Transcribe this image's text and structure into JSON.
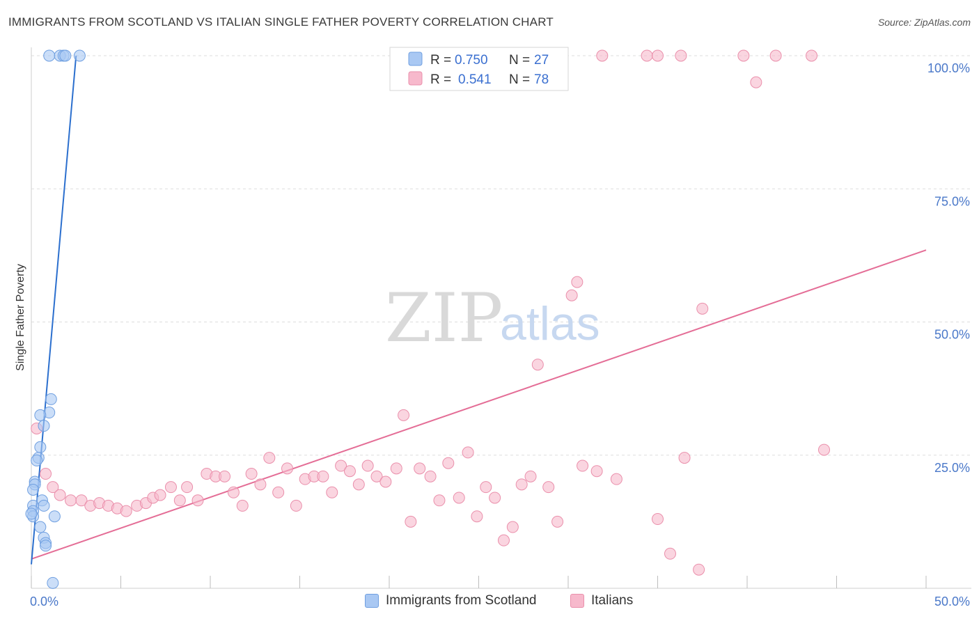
{
  "title": "IMMIGRANTS FROM SCOTLAND VS ITALIAN SINGLE FATHER POVERTY CORRELATION CHART",
  "source": "Source: ZipAtlas.com",
  "watermark": {
    "zip": "ZIP",
    "atlas": "atlas"
  },
  "colors": {
    "scotland_fill": "#a9c8f3",
    "scotland_stroke": "#6f9fe0",
    "scotland_line": "#2b6fce",
    "italians_fill": "#f7b9cc",
    "italians_stroke": "#ea8fab",
    "italians_line": "#e46d96",
    "grid": "#dddddd",
    "axis_text": "#4a78c9"
  },
  "chart_data": {
    "type": "scatter",
    "xlabel": "",
    "ylabel": "Single Father Poverty",
    "xlim": [
      0,
      50
    ],
    "ylim": [
      0,
      100
    ],
    "x_tick_labels": [
      "0.0%",
      "50.0%"
    ],
    "y_ticks": [
      25,
      50,
      75,
      100
    ],
    "y_tick_labels": [
      "25.0%",
      "50.0%",
      "75.0%",
      "100.0%"
    ],
    "legend_position": "top-center",
    "legend": [
      {
        "name": "Immigrants from Scotland",
        "r_label": "R =",
        "r": "0.750",
        "n_label": "N =",
        "n": "27"
      },
      {
        "name": "Italians",
        "r_label": "R =",
        "r": "0.541",
        "n_label": "N =",
        "n": "78"
      }
    ],
    "series": [
      {
        "name": "Immigrants from Scotland",
        "trend": {
          "x": [
            0.0,
            2.5
          ],
          "y": [
            4.5,
            100.0
          ]
        },
        "points": [
          {
            "x": 1.0,
            "y": 100.0
          },
          {
            "x": 1.6,
            "y": 100.0
          },
          {
            "x": 1.8,
            "y": 100.0
          },
          {
            "x": 1.9,
            "y": 100.0
          },
          {
            "x": 2.7,
            "y": 100.0
          },
          {
            "x": 1.1,
            "y": 35.5
          },
          {
            "x": 1.0,
            "y": 33.0
          },
          {
            "x": 0.5,
            "y": 32.5
          },
          {
            "x": 0.7,
            "y": 30.5
          },
          {
            "x": 0.5,
            "y": 26.5
          },
          {
            "x": 0.4,
            "y": 24.5
          },
          {
            "x": 0.3,
            "y": 24.0
          },
          {
            "x": 0.2,
            "y": 20.0
          },
          {
            "x": 0.2,
            "y": 19.5
          },
          {
            "x": 0.1,
            "y": 18.5
          },
          {
            "x": 0.6,
            "y": 16.5
          },
          {
            "x": 0.7,
            "y": 15.5
          },
          {
            "x": 0.1,
            "y": 15.5
          },
          {
            "x": 0.1,
            "y": 14.5
          },
          {
            "x": 1.3,
            "y": 13.5
          },
          {
            "x": 0.1,
            "y": 13.5
          },
          {
            "x": 0.5,
            "y": 11.5
          },
          {
            "x": 0.7,
            "y": 9.5
          },
          {
            "x": 0.8,
            "y": 8.5
          },
          {
            "x": 0.8,
            "y": 8.0
          },
          {
            "x": 1.2,
            "y": 1.0
          },
          {
            "x": 0.0,
            "y": 14.0
          }
        ]
      },
      {
        "name": "Italians",
        "trend": {
          "x": [
            0.0,
            50.0
          ],
          "y": [
            5.5,
            63.5
          ]
        },
        "points": [
          {
            "x": 0.3,
            "y": 30.0
          },
          {
            "x": 0.8,
            "y": 21.5
          },
          {
            "x": 1.2,
            "y": 19.0
          },
          {
            "x": 1.6,
            "y": 17.5
          },
          {
            "x": 2.2,
            "y": 16.5
          },
          {
            "x": 2.8,
            "y": 16.5
          },
          {
            "x": 3.3,
            "y": 15.5
          },
          {
            "x": 3.8,
            "y": 16.0
          },
          {
            "x": 4.3,
            "y": 15.5
          },
          {
            "x": 4.8,
            "y": 15.0
          },
          {
            "x": 5.3,
            "y": 14.5
          },
          {
            "x": 5.9,
            "y": 15.5
          },
          {
            "x": 6.4,
            "y": 16.0
          },
          {
            "x": 6.8,
            "y": 17.0
          },
          {
            "x": 7.2,
            "y": 17.5
          },
          {
            "x": 7.8,
            "y": 19.0
          },
          {
            "x": 8.3,
            "y": 16.5
          },
          {
            "x": 8.7,
            "y": 19.0
          },
          {
            "x": 9.3,
            "y": 16.5
          },
          {
            "x": 9.8,
            "y": 21.5
          },
          {
            "x": 10.3,
            "y": 21.0
          },
          {
            "x": 10.8,
            "y": 21.0
          },
          {
            "x": 11.3,
            "y": 18.0
          },
          {
            "x": 11.8,
            "y": 15.5
          },
          {
            "x": 12.3,
            "y": 21.5
          },
          {
            "x": 12.8,
            "y": 19.5
          },
          {
            "x": 13.3,
            "y": 24.5
          },
          {
            "x": 13.8,
            "y": 18.0
          },
          {
            "x": 14.3,
            "y": 22.5
          },
          {
            "x": 14.8,
            "y": 15.5
          },
          {
            "x": 15.3,
            "y": 20.5
          },
          {
            "x": 15.8,
            "y": 21.0
          },
          {
            "x": 16.3,
            "y": 21.0
          },
          {
            "x": 16.8,
            "y": 18.0
          },
          {
            "x": 17.3,
            "y": 23.0
          },
          {
            "x": 17.8,
            "y": 22.0
          },
          {
            "x": 18.3,
            "y": 19.5
          },
          {
            "x": 18.8,
            "y": 23.0
          },
          {
            "x": 19.3,
            "y": 21.0
          },
          {
            "x": 19.8,
            "y": 20.0
          },
          {
            "x": 20.4,
            "y": 22.5
          },
          {
            "x": 20.8,
            "y": 32.5
          },
          {
            "x": 21.2,
            "y": 12.5
          },
          {
            "x": 21.7,
            "y": 22.5
          },
          {
            "x": 22.3,
            "y": 21.0
          },
          {
            "x": 22.8,
            "y": 16.5
          },
          {
            "x": 23.3,
            "y": 23.5
          },
          {
            "x": 23.9,
            "y": 17.0
          },
          {
            "x": 24.4,
            "y": 25.5
          },
          {
            "x": 24.9,
            "y": 13.5
          },
          {
            "x": 25.4,
            "y": 19.0
          },
          {
            "x": 25.9,
            "y": 17.0
          },
          {
            "x": 26.4,
            "y": 9.0
          },
          {
            "x": 26.9,
            "y": 11.5
          },
          {
            "x": 27.4,
            "y": 19.5
          },
          {
            "x": 27.9,
            "y": 21.0
          },
          {
            "x": 28.3,
            "y": 42.0
          },
          {
            "x": 28.9,
            "y": 19.0
          },
          {
            "x": 29.4,
            "y": 12.5
          },
          {
            "x": 30.2,
            "y": 55.0
          },
          {
            "x": 30.5,
            "y": 57.5
          },
          {
            "x": 30.8,
            "y": 23.0
          },
          {
            "x": 31.6,
            "y": 22.0
          },
          {
            "x": 32.7,
            "y": 20.5
          },
          {
            "x": 35.0,
            "y": 13.0
          },
          {
            "x": 35.7,
            "y": 6.5
          },
          {
            "x": 36.5,
            "y": 24.5
          },
          {
            "x": 37.3,
            "y": 3.5
          },
          {
            "x": 37.5,
            "y": 52.5
          },
          {
            "x": 44.3,
            "y": 26.0
          },
          {
            "x": 31.9,
            "y": 100.0
          },
          {
            "x": 34.4,
            "y": 100.0
          },
          {
            "x": 35.0,
            "y": 100.0
          },
          {
            "x": 36.3,
            "y": 100.0
          },
          {
            "x": 39.8,
            "y": 100.0
          },
          {
            "x": 41.6,
            "y": 100.0
          },
          {
            "x": 43.6,
            "y": 100.0
          },
          {
            "x": 40.5,
            "y": 95.0
          }
        ]
      }
    ]
  }
}
